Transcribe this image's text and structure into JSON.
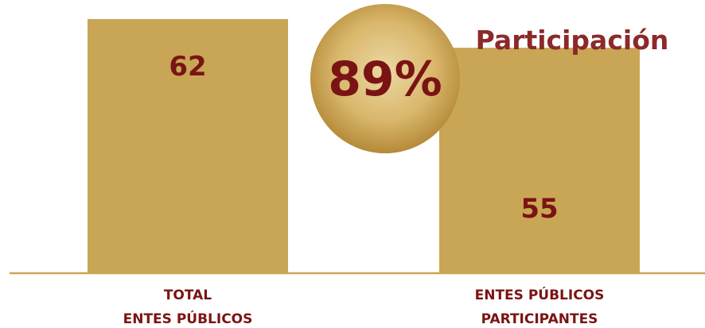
{
  "chart_data": {
    "type": "bar",
    "title": "",
    "xlabel": "",
    "ylabel": "",
    "categories": [
      "TOTAL\nENTES PÚBLICOS",
      "ENTES PÚBLICOS\nPARTICIPANTES"
    ],
    "values": [
      62,
      55
    ],
    "ylim": [
      0,
      62
    ],
    "grid": false,
    "legend": "none",
    "annotation": {
      "label": "Participación",
      "value": "89%"
    }
  },
  "colors": {
    "bar": "#c9a655",
    "axis": "#c9a655",
    "value_text": "#7a1414",
    "title_text": "#8b2a2a",
    "circle_center": "#e9d49a",
    "circle_edge": "#b98e3a"
  }
}
